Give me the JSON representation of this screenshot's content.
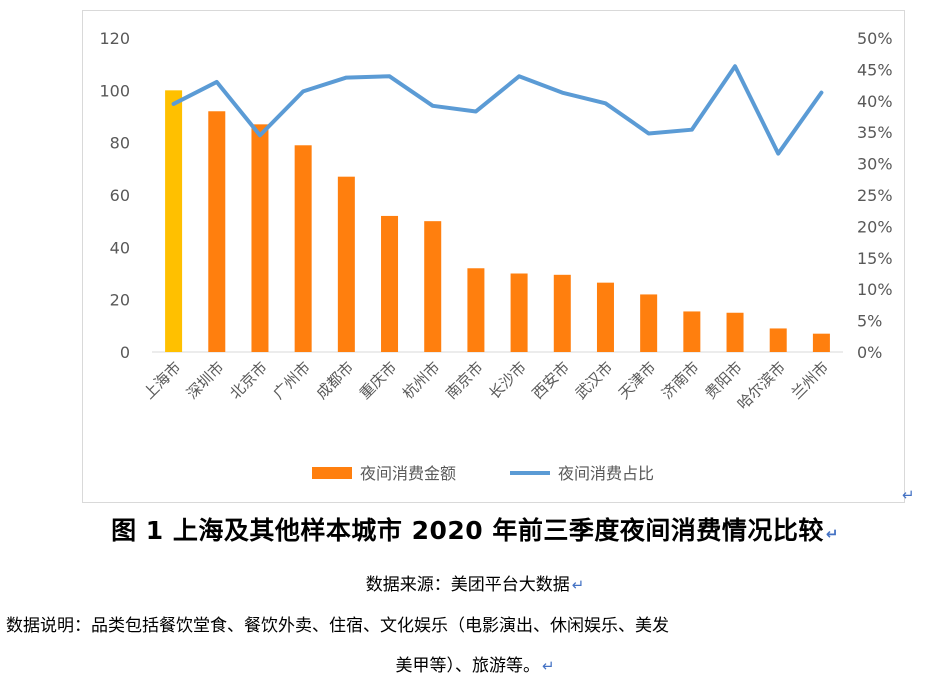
{
  "chart_data": {
    "type": "bar+line",
    "categories": [
      "上海市",
      "深圳市",
      "北京市",
      "广州市",
      "成都市",
      "重庆市",
      "杭州市",
      "南京市",
      "长沙市",
      "西安市",
      "武汉市",
      "天津市",
      "济南市",
      "贵阳市",
      "哈尔滨市",
      "兰州市"
    ],
    "series": [
      {
        "name": "夜间消费金额",
        "type": "bar",
        "axis": "left",
        "values": [
          100,
          92,
          87,
          79,
          67,
          52,
          50,
          32,
          30,
          29.5,
          26.5,
          22,
          15.5,
          15,
          9,
          7
        ],
        "color": "#ff7f0e",
        "highlight_color": "#ffc000",
        "highlight_index": 0
      },
      {
        "name": "夜间消费占比",
        "type": "line",
        "axis": "right",
        "values": [
          39.5,
          43.0,
          34.5,
          41.5,
          43.7,
          43.9,
          39.2,
          38.3,
          43.9,
          41.3,
          39.6,
          34.8,
          35.4,
          45.5,
          31.6,
          41.3
        ],
        "color": "#5b9bd5"
      }
    ],
    "yleft": {
      "lim": [
        0,
        120
      ],
      "ticks": [
        "0",
        "20",
        "40",
        "60",
        "80",
        "100",
        "120"
      ]
    },
    "yright": {
      "lim": [
        0,
        50
      ],
      "ticks": [
        "0%",
        "5%",
        "10%",
        "15%",
        "20%",
        "25%",
        "30%",
        "35%",
        "40%",
        "45%",
        "50%"
      ]
    },
    "grid": false,
    "legend_position": "bottom"
  },
  "figure_title": "图 1 上海及其他样本城市 2020 年前三季度夜间消费情况比较",
  "source_text": "数据来源：美团平台大数据",
  "note_line1": "数据说明：品类包括餐饮堂食、餐饮外卖、住宿、文化娱乐（电影演出、休闲娱乐、美发",
  "note_line2": "美甲等）、旅游等。",
  "return_mark": "↵"
}
